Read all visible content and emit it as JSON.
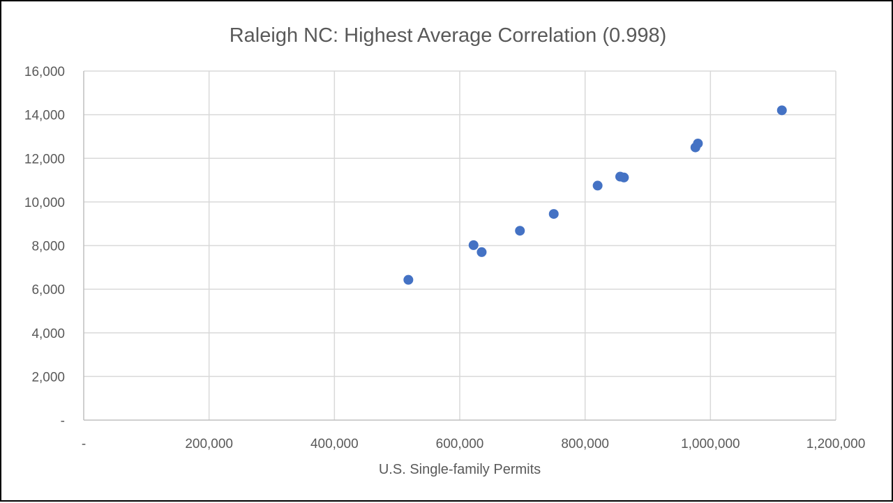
{
  "chart_data": {
    "type": "scatter",
    "title": "Raleigh NC: Highest Average Correlation (0.998)",
    "xlabel": "U.S. Single-family Permits",
    "ylabel": "",
    "xlim": [
      0,
      1200000
    ],
    "ylim": [
      0,
      16000
    ],
    "x_ticks": [
      0,
      200000,
      400000,
      600000,
      800000,
      1000000,
      1200000
    ],
    "x_tick_labels": [
      "-",
      "200,000",
      "400,000",
      "600,000",
      "800,000",
      "1,000,000",
      "1,200,000"
    ],
    "y_ticks": [
      0,
      2000,
      4000,
      6000,
      8000,
      10000,
      12000,
      14000,
      16000
    ],
    "y_tick_labels": [
      "-",
      "2,000",
      "4,000",
      "6,000",
      "8,000",
      "10,000",
      "12,000",
      "14,000",
      "16,000"
    ],
    "grid": true,
    "marker_color": "#4472c4",
    "points": [
      {
        "x": 518000,
        "y": 6430
      },
      {
        "x": 622000,
        "y": 8020
      },
      {
        "x": 635000,
        "y": 7700
      },
      {
        "x": 696000,
        "y": 8680
      },
      {
        "x": 750000,
        "y": 9450
      },
      {
        "x": 820000,
        "y": 10750
      },
      {
        "x": 856000,
        "y": 11160
      },
      {
        "x": 862000,
        "y": 11120
      },
      {
        "x": 976000,
        "y": 12500
      },
      {
        "x": 980000,
        "y": 12680
      },
      {
        "x": 1114000,
        "y": 14200
      }
    ]
  }
}
